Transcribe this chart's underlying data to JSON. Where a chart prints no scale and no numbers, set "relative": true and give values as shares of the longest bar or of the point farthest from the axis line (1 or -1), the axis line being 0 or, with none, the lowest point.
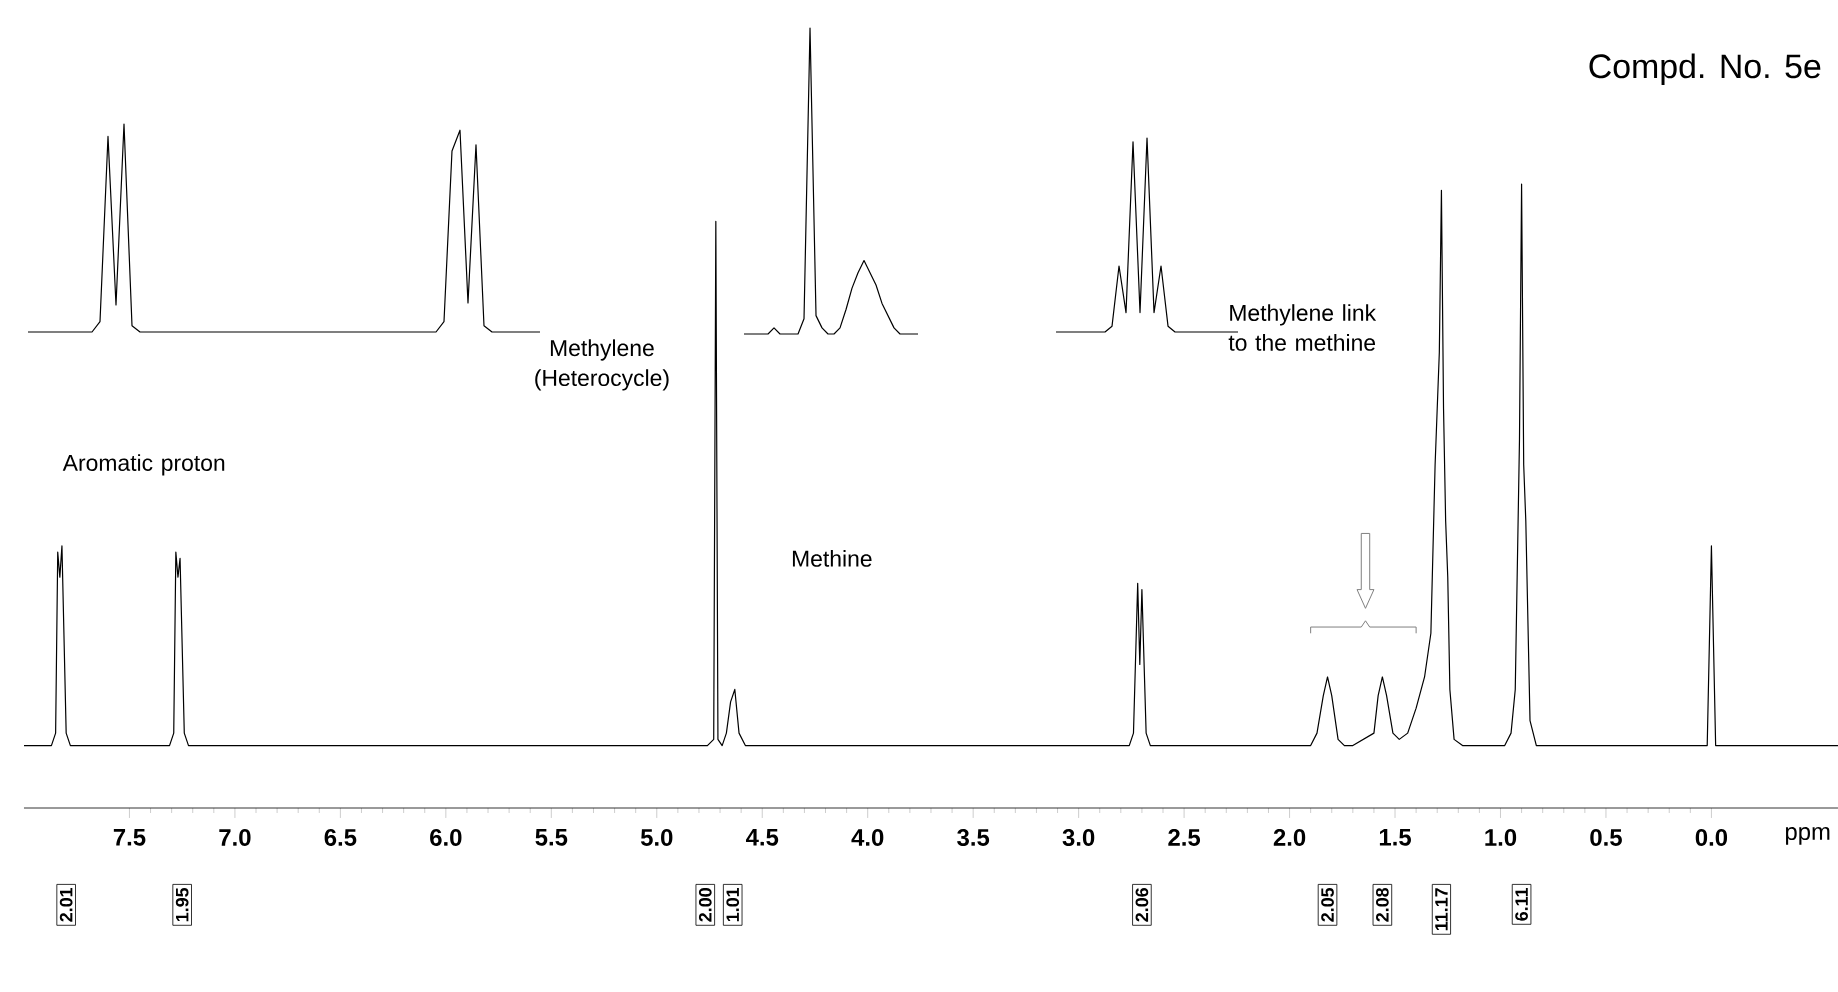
{
  "chart_data": [
    {
      "type": "line",
      "title": "Compd. No. 5e",
      "xlabel": "ppm",
      "relative": true,
      "color": "#000000",
      "xlim": [
        8.0,
        -0.6
      ],
      "xticks": [
        {
          "value": 7.5,
          "label": "7.5"
        },
        {
          "value": 7.0,
          "label": "7.0"
        },
        {
          "value": 6.5,
          "label": "6.5"
        },
        {
          "value": 6.0,
          "label": "6.0"
        },
        {
          "value": 5.5,
          "label": "5.5"
        },
        {
          "value": 5.0,
          "label": "5.0"
        },
        {
          "value": 4.5,
          "label": "4.5"
        },
        {
          "value": 4.0,
          "label": "4.0"
        },
        {
          "value": 3.5,
          "label": "3.5"
        },
        {
          "value": 3.0,
          "label": "3.0"
        },
        {
          "value": 2.5,
          "label": "2.5"
        },
        {
          "value": 2.0,
          "label": "2.0"
        },
        {
          "value": 1.5,
          "label": "1.5"
        },
        {
          "value": 1.0,
          "label": "1.0"
        },
        {
          "value": 0.5,
          "label": "0.5"
        },
        {
          "value": 0.0,
          "label": "0.0"
        }
      ],
      "x": [
        8.0,
        7.87,
        7.85,
        7.84,
        7.83,
        7.82,
        7.8,
        7.78,
        7.31,
        7.29,
        7.28,
        7.27,
        7.26,
        7.24,
        7.22,
        4.76,
        4.73,
        4.72,
        4.71,
        4.69,
        4.67,
        4.65,
        4.63,
        4.61,
        4.58,
        2.76,
        2.74,
        2.72,
        2.71,
        2.7,
        2.68,
        2.66,
        1.9,
        1.87,
        1.84,
        1.82,
        1.8,
        1.77,
        1.74,
        1.7,
        1.65,
        1.6,
        1.58,
        1.56,
        1.54,
        1.51,
        1.48,
        1.44,
        1.4,
        1.36,
        1.33,
        1.31,
        1.29,
        1.28,
        1.27,
        1.26,
        1.25,
        1.24,
        1.22,
        1.18,
        0.98,
        0.95,
        0.93,
        0.91,
        0.9,
        0.89,
        0.88,
        0.86,
        0.83,
        0.02,
        0.0,
        -0.02,
        -0.6
      ],
      "values": [
        0.1,
        0.1,
        0.12,
        0.41,
        0.37,
        0.42,
        0.12,
        0.1,
        0.1,
        0.12,
        0.41,
        0.37,
        0.4,
        0.12,
        0.1,
        0.1,
        0.11,
        0.94,
        0.11,
        0.1,
        0.12,
        0.17,
        0.19,
        0.12,
        0.1,
        0.1,
        0.12,
        0.36,
        0.23,
        0.35,
        0.12,
        0.1,
        0.1,
        0.12,
        0.18,
        0.21,
        0.18,
        0.11,
        0.1,
        0.1,
        0.11,
        0.12,
        0.18,
        0.21,
        0.18,
        0.12,
        0.11,
        0.12,
        0.16,
        0.21,
        0.28,
        0.55,
        0.73,
        0.99,
        0.64,
        0.46,
        0.37,
        0.19,
        0.11,
        0.1,
        0.1,
        0.12,
        0.19,
        0.59,
        1.0,
        0.55,
        0.46,
        0.14,
        0.1,
        0.1,
        0.42,
        0.1,
        0.1
      ],
      "annotations": [
        "Aromatic proton",
        "Methylene (Heterocycle)",
        "Methine",
        "Methylene link to the methine",
        "2.01",
        "1.95",
        "2.00",
        "1.01",
        "2.06",
        "2.05",
        "2.08",
        "11.17",
        "6.11"
      ]
    },
    {
      "type": "line",
      "relative": true,
      "tick_labels": false,
      "color": "#000000",
      "categories": [
        null,
        null,
        null,
        null,
        null,
        null,
        null,
        null,
        null,
        null,
        null,
        null,
        null,
        null,
        null,
        null,
        null,
        null,
        null,
        null,
        null,
        null,
        null,
        null,
        null,
        null,
        null,
        null,
        null,
        null,
        null,
        null,
        null,
        null,
        null,
        null,
        null,
        null,
        null,
        null,
        null,
        null,
        null,
        null,
        null,
        null,
        null,
        null,
        null,
        null,
        null,
        null,
        null,
        null,
        null,
        null,
        null,
        null,
        null,
        null,
        null,
        null,
        null,
        null,
        null
      ],
      "values": [
        0,
        0,
        0,
        0,
        0,
        0,
        0,
        0,
        0,
        0.05,
        0.94,
        0.13,
        1.0,
        0.03,
        0,
        0,
        0,
        0,
        0,
        0,
        0,
        0,
        0,
        0,
        0,
        0,
        0,
        0,
        0,
        0,
        0,
        0,
        0,
        0,
        0,
        0,
        0,
        0,
        0,
        0,
        0,
        0,
        0,
        0,
        0,
        0,
        0,
        0,
        0,
        0,
        0,
        0,
        0.05,
        0.87,
        0.97,
        0.14,
        0.9,
        0.03,
        0,
        0,
        0,
        0,
        0,
        0,
        0
      ]
    },
    {
      "type": "line",
      "relative": true,
      "tick_labels": false,
      "color": "#000000",
      "categories": [
        null,
        null,
        null,
        null,
        null,
        null,
        null,
        null,
        null,
        null,
        null,
        null,
        null,
        null,
        null,
        null,
        null,
        null,
        null,
        null,
        null,
        null,
        null,
        null,
        null,
        null,
        null,
        null,
        null,
        null
      ],
      "values": [
        0,
        0,
        0,
        0,
        0,
        0.02,
        0,
        0,
        0,
        0,
        0.05,
        1.0,
        0.06,
        0.02,
        0,
        0,
        0.02,
        0.08,
        0.15,
        0.2,
        0.24,
        0.2,
        0.16,
        0.1,
        0.06,
        0.02,
        0,
        0,
        0,
        0
      ]
    },
    {
      "type": "line",
      "relative": true,
      "tick_labels": false,
      "color": "#000000",
      "categories": [
        null,
        null,
        null,
        null,
        null,
        null,
        null,
        null,
        null,
        null,
        null,
        null,
        null,
        null,
        null,
        null,
        null,
        null,
        null,
        null,
        null,
        null,
        null,
        null,
        null,
        null,
        null
      ],
      "values": [
        0,
        0,
        0,
        0,
        0,
        0,
        0,
        0,
        0.03,
        0.34,
        0.1,
        0.98,
        0.1,
        1.0,
        0.1,
        0.34,
        0.03,
        0,
        0,
        0,
        0,
        0,
        0,
        0,
        0,
        0,
        0
      ]
    }
  ]
}
